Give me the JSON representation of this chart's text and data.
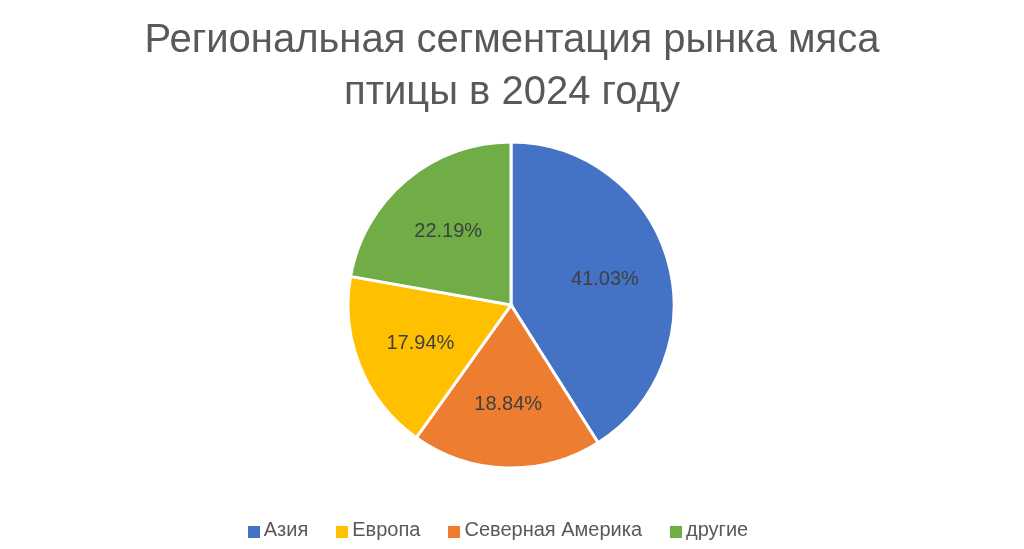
{
  "chart_data": {
    "type": "pie",
    "title": "Региональная сегментация рынка мяса птицы в 2024 году",
    "categories": [
      "Азия",
      "Северная Америка",
      "Европа",
      "другие"
    ],
    "values": [
      41.03,
      18.84,
      17.94,
      22.19
    ],
    "colors": [
      "#4472c4",
      "#ed7d31",
      "#ffc000",
      "#70ad47"
    ],
    "value_labels": [
      "41.03%",
      "18.84%",
      "17.94%",
      "22.19%"
    ],
    "legend": "bottom"
  }
}
